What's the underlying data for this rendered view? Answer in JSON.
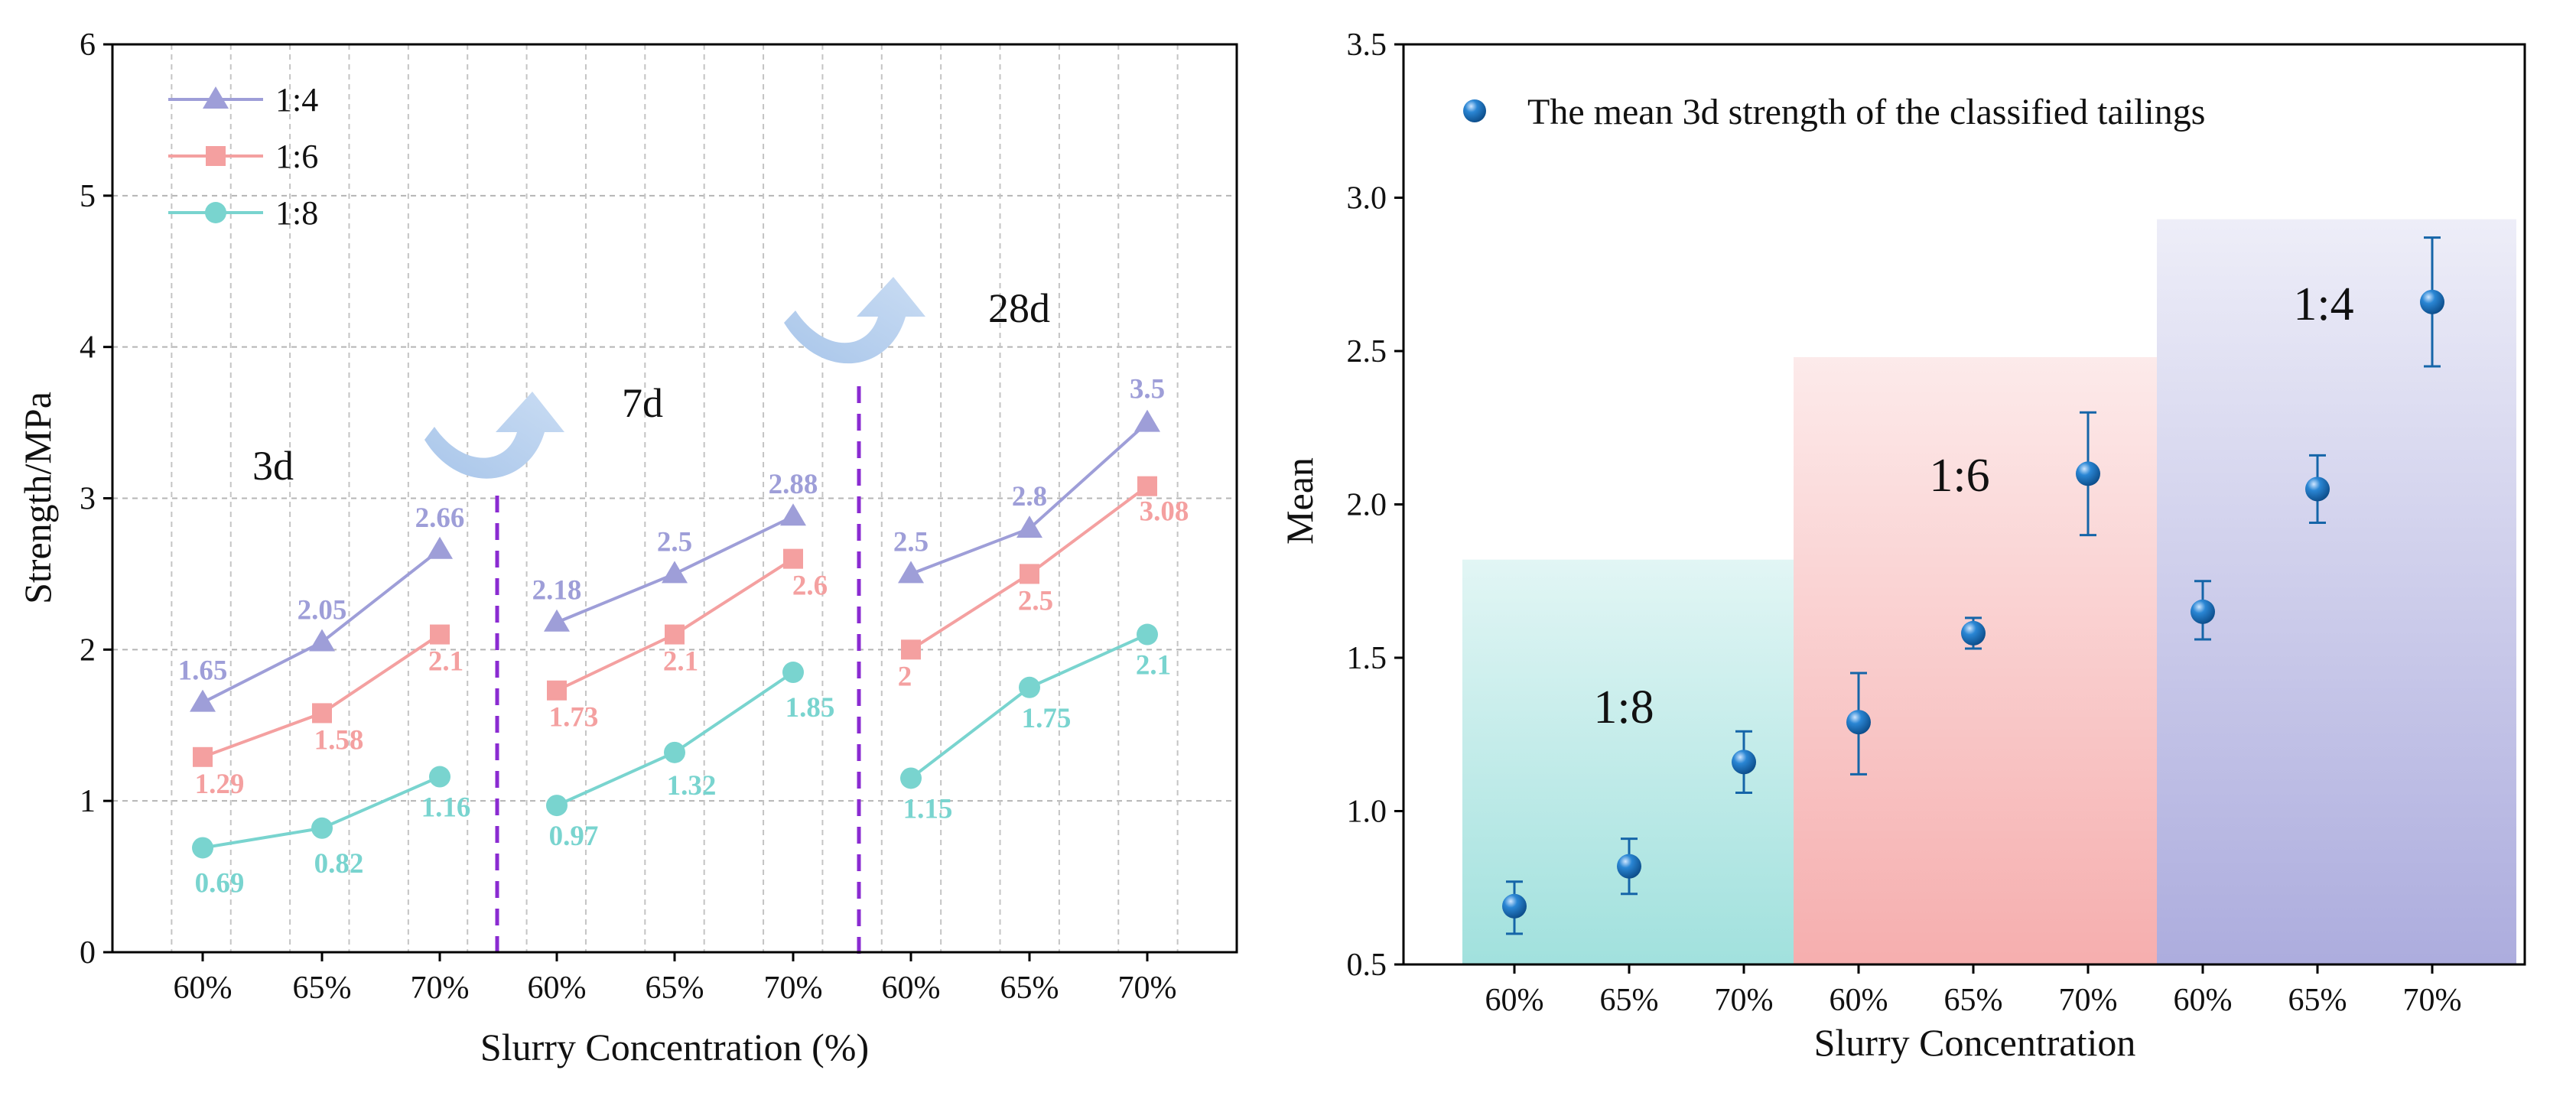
{
  "chart_data": [
    {
      "type": "line",
      "xlabel": "Slurry Concentration (%)",
      "ylabel": "Strength/MPa",
      "ylim": [
        0,
        6
      ],
      "yticks": [
        "0",
        "1",
        "2",
        "3",
        "4",
        "5",
        "6"
      ],
      "categories": [
        "60%",
        "65%",
        "70%",
        "60%",
        "65%",
        "70%",
        "60%",
        "65%",
        "70%"
      ],
      "grid": true,
      "legend_position": "top-left",
      "groups": [
        "3d",
        "7d",
        "28d"
      ],
      "colors": {
        "1:4": "#9e9ed8",
        "1:6": "#f4a0a0",
        "1:8": "#79d4cf"
      },
      "series": [
        {
          "name": "1:4",
          "values": [
            1.65,
            2.05,
            2.66,
            2.18,
            2.5,
            2.88,
            2.5,
            2.8,
            3.5
          ],
          "labels": [
            "1.65",
            "2.05",
            "2.66",
            "2.18",
            "2.5",
            "2.88",
            "2.5",
            "2.8",
            "3.5"
          ]
        },
        {
          "name": "1:6",
          "values": [
            1.29,
            1.58,
            2.1,
            1.73,
            2.1,
            2.6,
            2,
            2.5,
            3.08
          ],
          "labels": [
            "1.29",
            "1.58",
            "2.1",
            "1.73",
            "2.1",
            "2.6",
            "2",
            "2.5",
            "3.08"
          ]
        },
        {
          "name": "1:8",
          "values": [
            0.69,
            0.82,
            1.16,
            0.97,
            1.32,
            1.85,
            1.15,
            1.75,
            2.1
          ],
          "labels": [
            "0.69",
            "0.82",
            "1.16",
            "0.97",
            "1.32",
            "1.85",
            "1.15",
            "1.75",
            "2.1"
          ]
        }
      ]
    },
    {
      "type": "scatter",
      "xlabel": "Slurry Concentration",
      "ylabel": "Mean",
      "ylim": [
        0.5,
        3.5
      ],
      "yticks": [
        "0.5",
        "1.0",
        "1.5",
        "2.0",
        "2.5",
        "3.0",
        "3.5"
      ],
      "categories": [
        "60%",
        "65%",
        "70%",
        "60%",
        "65%",
        "70%",
        "60%",
        "65%",
        "70%"
      ],
      "legend": "The mean 3d strength of the classified tailings",
      "legend_position": "top-left",
      "marker_color": "#1565a8",
      "values": [
        0.69,
        0.82,
        1.16,
        1.29,
        1.58,
        2.1,
        1.65,
        2.05,
        2.66
      ],
      "error_low": [
        0.6,
        0.73,
        1.06,
        1.12,
        1.53,
        1.9,
        1.56,
        1.94,
        2.45
      ],
      "error_high": [
        0.77,
        0.91,
        1.26,
        1.45,
        1.63,
        2.3,
        1.75,
        2.16,
        2.87
      ],
      "bands": [
        {
          "label": "1:8",
          "top": 1.82,
          "color": "#79d4cf"
        },
        {
          "label": "1:6",
          "top": 2.48,
          "color": "#f4a0a0"
        },
        {
          "label": "1:4",
          "top": 2.93,
          "color": "#9e9ed8"
        }
      ]
    }
  ]
}
